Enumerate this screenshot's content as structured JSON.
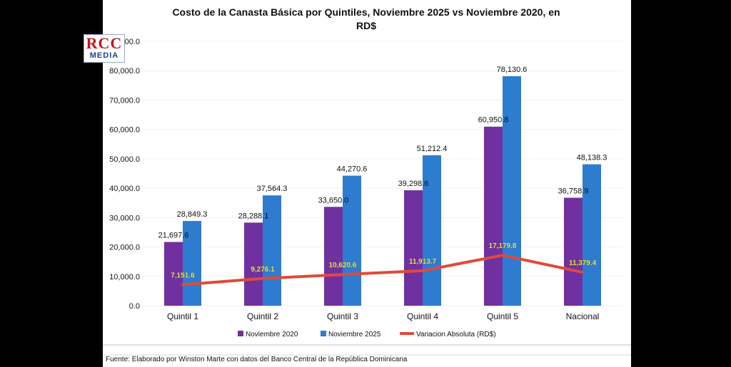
{
  "logo": {
    "top": "RCC",
    "bottom": "MEDIA"
  },
  "chart_data": {
    "type": "bar",
    "title_line1": "Costo de la Canasta Básica por Quintiles, Noviembre 2025 vs Noviembre 2020, en",
    "title_line2": "RD$",
    "categories": [
      "Quintil 1",
      "Quintil 2",
      "Quintil 3",
      "Quintil 4",
      "Quintil 5",
      "Nacional"
    ],
    "series": [
      {
        "name": "Noviembre 2020",
        "type": "bar",
        "color": "#7030a0",
        "values": [
          21697.6,
          28288.1,
          33650.0,
          39298.6,
          60950.8,
          36758.9
        ],
        "labels": [
          "21,697.6",
          "28,288.1",
          "33,650.0",
          "39,298.6",
          "60,950.8",
          "36,758.9"
        ]
      },
      {
        "name": "Noviembre 2025",
        "type": "bar",
        "color": "#2e7cd0",
        "values": [
          28849.3,
          37564.3,
          44270.6,
          51212.4,
          78130.6,
          48138.3
        ],
        "labels": [
          "28,849.3",
          "37,564.3",
          "44,270.6",
          "51,212.4",
          "78,130.6",
          "48,138.3"
        ]
      },
      {
        "name": "Variacion Absoluta (RD$)",
        "type": "line",
        "color": "#e04a3a",
        "values": [
          7151.6,
          9276.1,
          10620.6,
          11913.7,
          17179.8,
          11379.4
        ],
        "labels": [
          "7,151.6",
          "9,276.1",
          "10,620.6",
          "11,913.7",
          "17,179.8",
          "11,379.4"
        ]
      }
    ],
    "ylim": [
      0,
      90000
    ],
    "yticks": [
      "0.0",
      "10,000.0",
      "20,000.0",
      "30,000.0",
      "40,000.0",
      "50,000.0",
      "60,000.0",
      "70,000.0",
      "80,000.0",
      "90,000.0"
    ],
    "ytick_values": [
      0,
      10000,
      20000,
      30000,
      40000,
      50000,
      60000,
      70000,
      80000,
      90000
    ],
    "line_label_color": "#ffff33",
    "legend_position": "bottom",
    "grid": true,
    "source": "Fuente: Elaborado por Winston Marte con datos del Banco Central de la República Dominicana"
  }
}
